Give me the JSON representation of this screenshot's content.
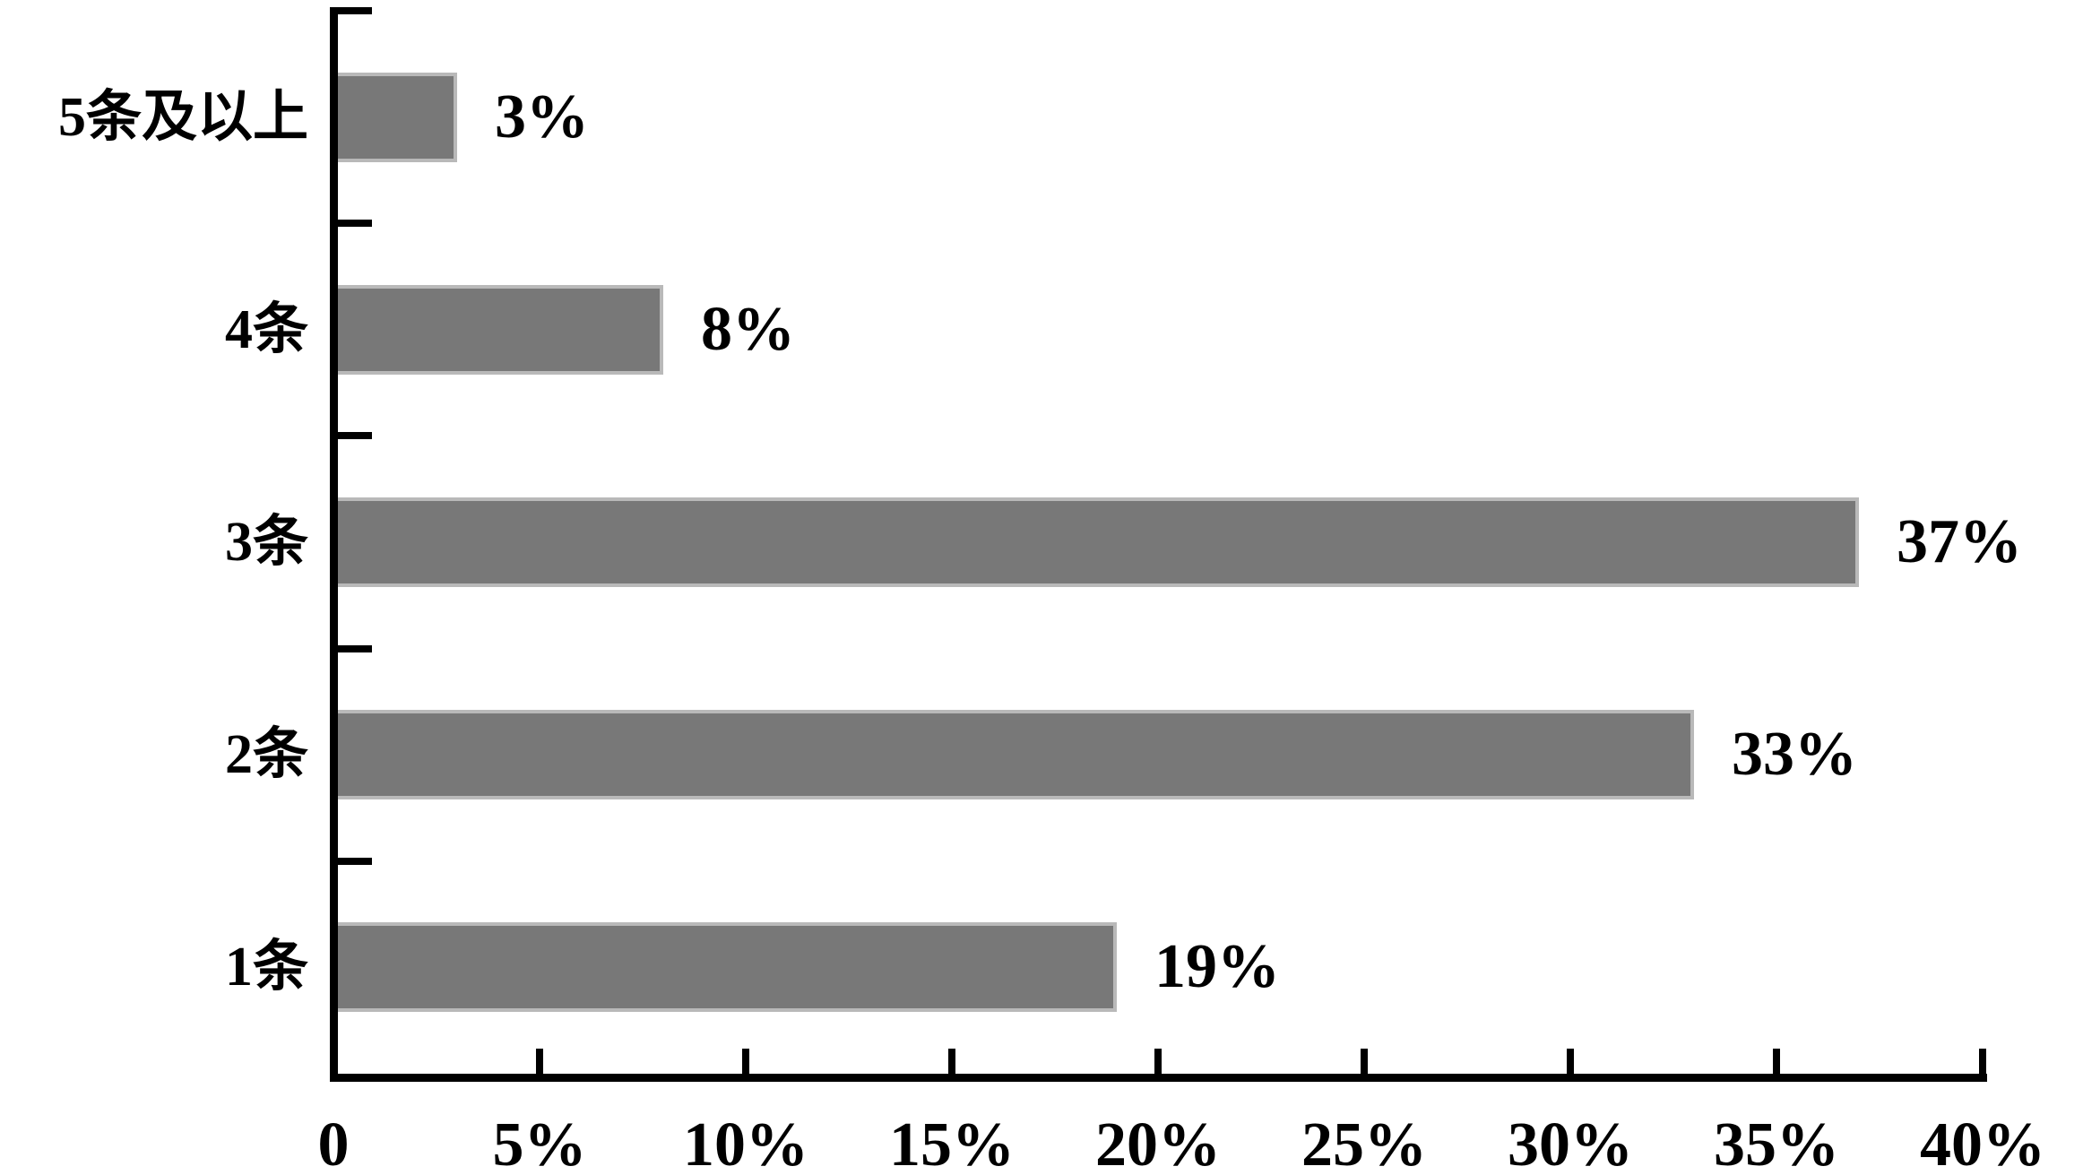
{
  "chart_data": {
    "type": "bar",
    "orientation": "horizontal",
    "categories": [
      "5条及以上",
      "4条",
      "3条",
      "2条",
      "1条"
    ],
    "values": [
      3,
      8,
      37,
      33,
      19
    ],
    "value_labels": [
      "3%",
      "8%",
      "37%",
      "33%",
      "19%"
    ],
    "x_tick_labels": [
      "0",
      "5%",
      "10%",
      "15%",
      "20%",
      "25%",
      "30%",
      "35%",
      "40%"
    ],
    "x_tick_values": [
      0,
      5,
      10,
      15,
      20,
      25,
      30,
      35,
      40
    ],
    "xlim": [
      0,
      40
    ],
    "grid": false,
    "legend": false,
    "title": "",
    "xlabel": "",
    "ylabel": "",
    "colors": {
      "bar_fill": "#787878",
      "bar_border": "#b9b9b9",
      "axis": "#000000",
      "text": "#000000",
      "background": "#ffffff"
    }
  }
}
